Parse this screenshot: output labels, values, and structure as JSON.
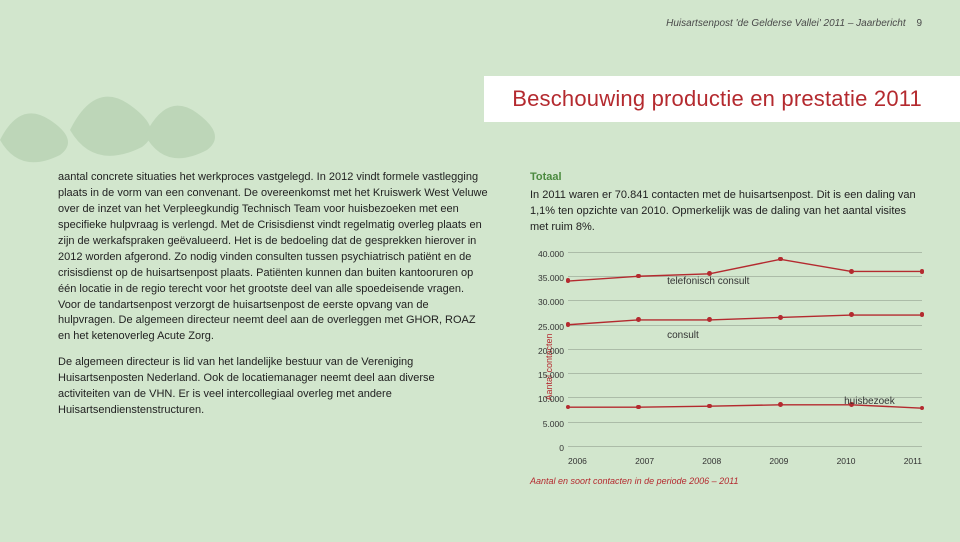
{
  "header": {
    "running_head": "Huisartsenpost 'de Gelderse Vallei' 2011 – Jaarbericht",
    "page_number": "9"
  },
  "heading": "Beschouwing productie en prestatie 2011",
  "left_column": {
    "p1": "aantal concrete situaties het werkproces vastgelegd. In 2012 vindt formele vastlegging plaats in de vorm van een convenant. De overeenkomst met het Kruiswerk West Veluwe over de inzet van het Verpleegkundig Technisch Team voor huisbezoeken met een specifieke hulpvraag is verlengd. Met de Crisisdienst vindt regelmatig overleg plaats en zijn de werkafspraken geëvalueerd. Het is de bedoeling dat de gesprekken hierover in 2012 worden afgerond. Zo nodig vinden consulten tussen psychiatrisch patiënt en de crisisdienst op de huisartsenpost plaats. Patiënten kunnen dan buiten kantooruren op één locatie in de regio terecht voor het grootste deel van alle spoedeisende vragen. Voor de tandartsenpost verzorgt de huisartsenpost de eerste opvang van de hulpvragen. De algemeen directeur neemt deel aan de overleggen met GHOR, ROAZ en het ketenoverleg Acute Zorg.",
    "p2": "De algemeen directeur is lid van het landelijke bestuur van de Vereniging Huisartsenposten Nederland. Ook de locatiemanager neemt deel aan diverse activiteiten van de VHN. Er is veel intercollegiaal overleg met andere Huisartsendienstenstructuren."
  },
  "right_column": {
    "totaal_label": "Totaal",
    "totaal_text": "In 2011 waren er 70.841 contacten met de huisartsenpost. Dit is een daling van 1,1% ten opzichte van 2010. Opmerkelijk was de daling van het aantal visites met ruim 8%."
  },
  "chart": {
    "type": "line",
    "yaxis_label": "Aantal contacten",
    "caption": "Aantal en soort contacten in de periode 2006 – 2011",
    "ylim": [
      0,
      40000
    ],
    "ytick_step": 5000,
    "ytick_labels": [
      "0",
      "5.000",
      "10.000",
      "15.000",
      "20.000",
      "25.000",
      "30.000",
      "35.000",
      "40.000"
    ],
    "x_categories": [
      "2006",
      "2007",
      "2008",
      "2009",
      "2010",
      "2011"
    ],
    "series": [
      {
        "name": "telefonisch consult",
        "label": "telefonisch consult",
        "color": "#b42a2f",
        "values": [
          34000,
          35000,
          35500,
          38500,
          36000,
          36000
        ],
        "label_pos_pct": {
          "left": 28,
          "top": 12
        }
      },
      {
        "name": "consult",
        "label": "consult",
        "color": "#b42a2f",
        "values": [
          25000,
          26000,
          26000,
          26500,
          27000,
          27000
        ],
        "label_pos_pct": {
          "left": 28,
          "top": 40
        }
      },
      {
        "name": "huisbezoek",
        "label": "huisbezoek",
        "color": "#b42a2f",
        "values": [
          8000,
          8000,
          8200,
          8500,
          8500,
          7800
        ],
        "label_pos_pct": {
          "left": 78,
          "top": 74
        }
      }
    ],
    "line_width": 1.4,
    "marker_radius": 2.4,
    "grid_color": "rgba(0,0,0,0.18)",
    "background_color": "transparent",
    "label_color": "#333333",
    "axis_fontsize": 8.5,
    "annot_fontsize": 10
  },
  "colors": {
    "page_bg": "#d2e6cd",
    "accent_red": "#b42a2f",
    "accent_green": "#4b8a3f",
    "text": "#222222",
    "panel_white": "#ffffff"
  }
}
